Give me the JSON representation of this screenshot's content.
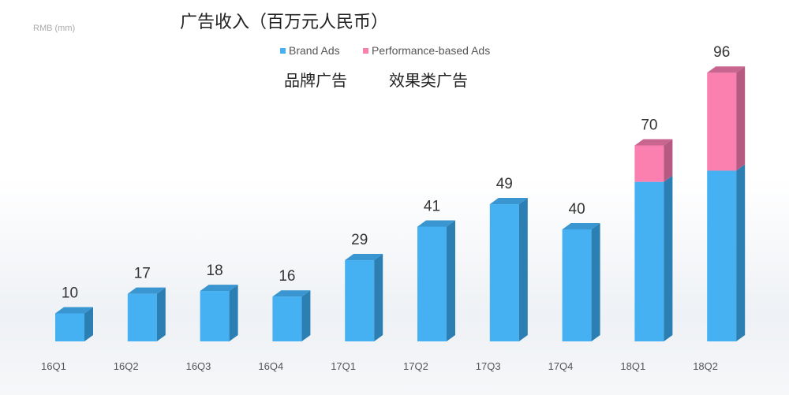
{
  "chart_data": {
    "type": "bar",
    "stacked": true,
    "title": "广告收入（百万元人民币）",
    "ylabel": "RMB (mm)",
    "xlabel": "",
    "categories": [
      "16Q1",
      "16Q2",
      "16Q3",
      "16Q4",
      "17Q1",
      "17Q2",
      "17Q3",
      "17Q4",
      "18Q1",
      "18Q2"
    ],
    "series": [
      {
        "name": "Brand Ads",
        "name_cn": "品牌广告",
        "color": "#45b0f2",
        "values": [
          10,
          17,
          18,
          16,
          29,
          41,
          49,
          40,
          57,
          61
        ]
      },
      {
        "name": "Performance-based Ads",
        "name_cn": "效果类广告",
        "color": "#fb80b0",
        "values": [
          0,
          0,
          0,
          0,
          0,
          0,
          0,
          0,
          13,
          35
        ]
      }
    ],
    "totals": [
      10,
      17,
      18,
      16,
      29,
      41,
      49,
      40,
      70,
      96
    ],
    "ylim": [
      0,
      100
    ],
    "grid": false,
    "legend": "top-center"
  }
}
